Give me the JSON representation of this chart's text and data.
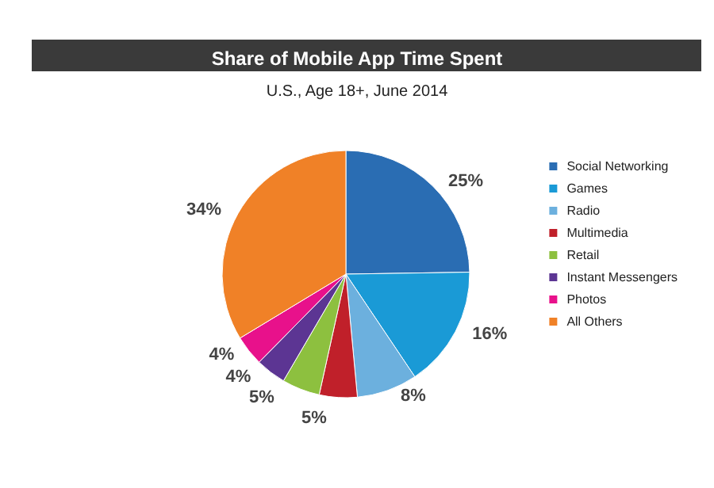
{
  "chart_data": {
    "type": "pie",
    "title": "Share of Mobile App Time Spent",
    "subtitle": "U.S., Age 18+, June 2014",
    "categories": [
      "Social Networking",
      "Games",
      "Radio",
      "Multimedia",
      "Retail",
      "Instant Messengers",
      "Photos",
      "All Others"
    ],
    "values": [
      25,
      16,
      8,
      5,
      5,
      4,
      4,
      34
    ],
    "value_labels": [
      "25%",
      "16%",
      "8%",
      "5%",
      "5%",
      "4%",
      "4%",
      "34%"
    ],
    "colors": [
      "#2a6db3",
      "#1a9ad6",
      "#6cb0de",
      "#c0202a",
      "#8dc03f",
      "#5c3593",
      "#e8118b",
      "#f08127"
    ],
    "legend": "right"
  }
}
